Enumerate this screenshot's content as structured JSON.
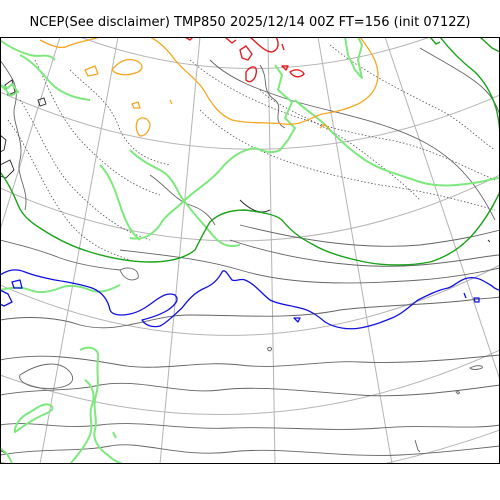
{
  "title": "NCEP(See disclaimer) TMP850 2025/12/14 00Z FT=156 (init 0712Z)",
  "colors": {
    "graticule": "#b4b4b4",
    "isotherm": "#646464",
    "isotherm_dotted": "#505050",
    "zero_line": "#1aa21a",
    "warm_green": "#7ee87e",
    "orange": "#f5a623",
    "red": "#e02020",
    "blue": "#1010e0",
    "coast": "#222222"
  }
}
